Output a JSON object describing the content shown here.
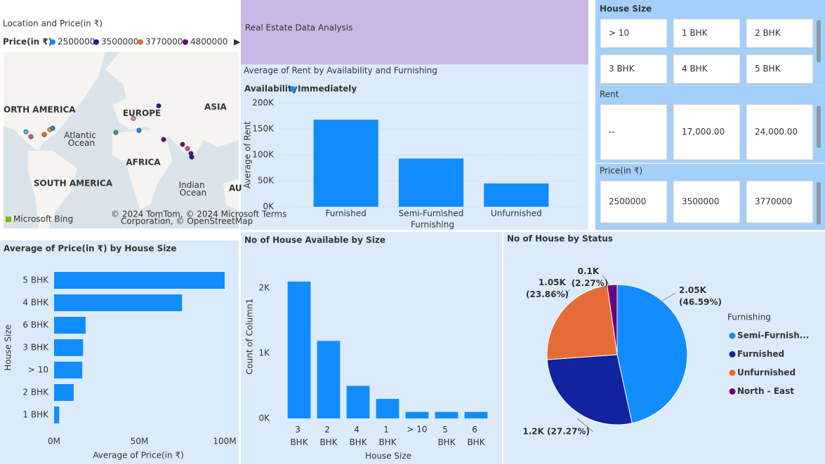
{
  "title": "Real Estate Data Analysis",
  "map": {
    "title": "Location and Price(in ₹)",
    "legend_title": "Price(in ₹)",
    "legend": [
      {
        "name": "2500000",
        "color": "#118dff"
      },
      {
        "name": "3500000",
        "color": "#12239e"
      },
      {
        "name": "3770000",
        "color": "#e66c37"
      },
      {
        "name": "4800000",
        "color": "#6b007b"
      }
    ],
    "labels": [
      "ORTH AMERICA",
      "EUROPE",
      "ASIA",
      "Atlantic Ocean",
      "AFRICA",
      "SOUTH AMERICA",
      "Indian Ocean",
      "AU"
    ],
    "credits": [
      "© 2024 TomTom, © 2024 Microsoft  Terms",
      "Corporation, © OpenStreetMap"
    ],
    "provider": "Microsoft Bing"
  },
  "slicers": [
    {
      "title": "House Size",
      "items": [
        "> 10",
        "1 BHK",
        "2 BHK",
        "3 BHK",
        "4 BHK",
        "5 BHK"
      ]
    },
    {
      "title": "Rent",
      "items": [
        "--",
        "17,000.00",
        "24,000.00"
      ]
    },
    {
      "title": "Price(in ₹)",
      "items": [
        "2500000",
        "3500000",
        "3770000"
      ]
    }
  ],
  "chart_data": [
    {
      "type": "bar",
      "title": "Average of Rent by Availability and Furnishing",
      "legend_title": "Availability",
      "categories": [
        "Furnished",
        "Semi-Furnished",
        "Unfurnished"
      ],
      "series": [
        {
          "name": "Immediately",
          "color": "#118dff",
          "values": [
            168000,
            93000,
            45000
          ]
        }
      ],
      "xlabel": "Furnishing",
      "ylabel": "Average of Rent",
      "ylim": [
        0,
        200000
      ],
      "yticks": [
        {
          "value": 0,
          "label": "0K"
        },
        {
          "value": 50000,
          "label": "50K"
        },
        {
          "value": 100000,
          "label": "100K"
        },
        {
          "value": 150000,
          "label": "150K"
        },
        {
          "value": 200000,
          "label": "200K"
        }
      ],
      "grid": true
    },
    {
      "type": "hbar",
      "title": "Average of Price(in ₹) by House Size",
      "categories": [
        "5 BHK",
        "4 BHK",
        "6 BHK",
        "3 BHK",
        "> 10",
        "2 BHK",
        "1 BHK"
      ],
      "values": [
        100000000,
        75000000,
        18500000,
        17000000,
        16500000,
        11500000,
        3000000
      ],
      "color": "#118dff",
      "xlabel": "Average of Price(in ₹)",
      "ylabel": "House Size",
      "xlim": [
        0,
        100000000
      ],
      "xticks": [
        {
          "value": 0,
          "label": "0M"
        },
        {
          "value": 50000000,
          "label": "50M"
        },
        {
          "value": 100000000,
          "label": "100M"
        }
      ],
      "grid": false
    },
    {
      "type": "bar",
      "title": "No of House Available by Size",
      "categories": [
        "3 BHK",
        "2 BHK",
        "4 BHK",
        "1 BHK",
        "> 10",
        "5 BHK",
        "6 BHK"
      ],
      "values": [
        2100,
        1190,
        500,
        300,
        100,
        100,
        100
      ],
      "color": "#118dff",
      "xlabel": "House Size",
      "ylabel": "Count of Column1",
      "ylim": [
        0,
        2200
      ],
      "yticks": [
        {
          "value": 0,
          "label": "0K"
        },
        {
          "value": 1000,
          "label": "1K"
        },
        {
          "value": 2000,
          "label": "2K"
        }
      ],
      "grid": false
    },
    {
      "type": "pie",
      "title": "No of House by Status",
      "legend_title": "Furnishing",
      "categories": [
        "Semi-Furnish...",
        "Furnished",
        "Unfurnished",
        "North - East"
      ],
      "values": [
        2050,
        1200,
        1050,
        100
      ],
      "value_labels": [
        "2.05K (46.59%)",
        "1.2K (27.27%)",
        "1.05K (23.86%)",
        "0.1K (2.27%)"
      ],
      "colors": [
        "#118dff",
        "#12239e",
        "#e66c37",
        "#6b007b"
      ]
    }
  ]
}
